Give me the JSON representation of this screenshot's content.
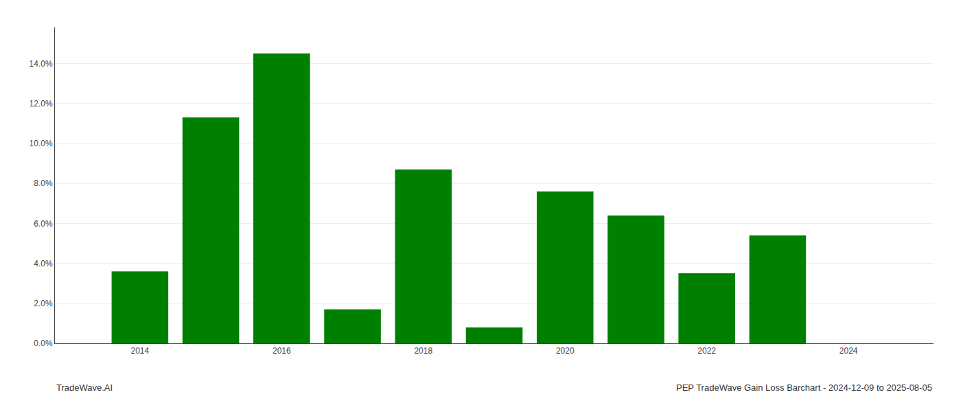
{
  "chart_data": {
    "type": "bar",
    "x": [
      2014,
      2015,
      2016,
      2017,
      2018,
      2019,
      2020,
      2021,
      2022,
      2023
    ],
    "values": [
      0.036,
      0.113,
      0.145,
      0.017,
      0.087,
      0.008,
      0.076,
      0.064,
      0.035,
      0.054
    ],
    "color": "#008000",
    "xlim": [
      2012.8,
      2025.2
    ],
    "xticks": [
      2014,
      2016,
      2018,
      2020,
      2022,
      2024
    ],
    "ylim": [
      0,
      0.158
    ],
    "yticks": [
      {
        "value": 0.0,
        "label": "0.0%"
      },
      {
        "value": 0.02,
        "label": "2.0%"
      },
      {
        "value": 0.04,
        "label": "4.0%"
      },
      {
        "value": 0.06,
        "label": "6.0%"
      },
      {
        "value": 0.08,
        "label": "8.0%"
      },
      {
        "value": 0.1,
        "label": "10.0%"
      },
      {
        "value": 0.12,
        "label": "12.0%"
      },
      {
        "value": 0.14,
        "label": "14.0%"
      }
    ],
    "grid": true,
    "annotations": [
      "TradeWave.AI",
      "PEP TradeWave Gain Loss Barchart - 2024-12-09 to 2025-08-05"
    ]
  }
}
